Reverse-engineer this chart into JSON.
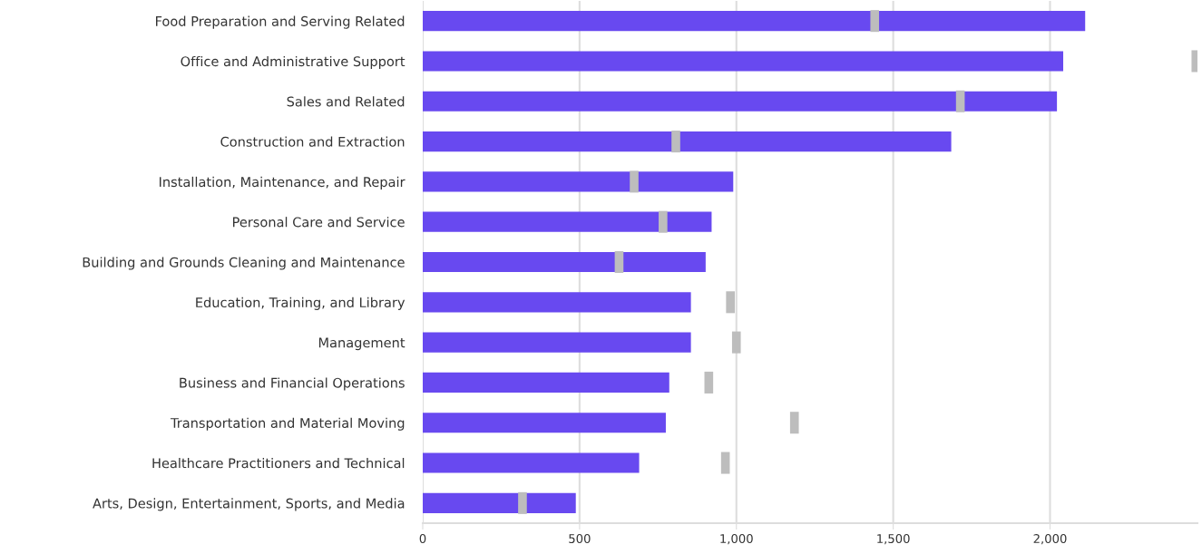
{
  "chart_data": {
    "type": "bar",
    "orientation": "horizontal",
    "categories": [
      "Food Preparation and Serving Related",
      "Office and Administrative Support",
      "Sales and Related",
      "Construction and Extraction",
      "Installation, Maintenance, and Repair",
      "Personal Care and Service",
      "Building and Grounds Cleaning and Maintenance",
      "Education, Training, and Library",
      "Management",
      "Business and Financial Operations",
      "Transportation and Material Moving",
      "Healthcare Practitioners and Technical",
      "Arts, Design, Entertainment, Sports, and Media"
    ],
    "series": [
      {
        "type": "bar",
        "color": "#6849f0",
        "values": [
          2112,
          2042,
          2022,
          1685,
          990,
          921,
          902,
          855,
          855,
          786,
          775,
          690,
          488
        ]
      },
      {
        "type": "scatter",
        "color": "#bdbdbd",
        "marker": "square",
        "values": [
          1441,
          2465,
          1714,
          807,
          674,
          766,
          626,
          981,
          1000,
          912,
          1185,
          965,
          318
        ]
      }
    ],
    "xlim": [
      0,
      2470
    ],
    "xticks": [
      0,
      {
        "value": 500,
        "label": "500"
      },
      {
        "value": 1000,
        "label": "1,000"
      },
      {
        "value": 1500,
        "label": "1,500"
      },
      {
        "value": 2000,
        "label": "2,000"
      }
    ],
    "grid": "x"
  }
}
